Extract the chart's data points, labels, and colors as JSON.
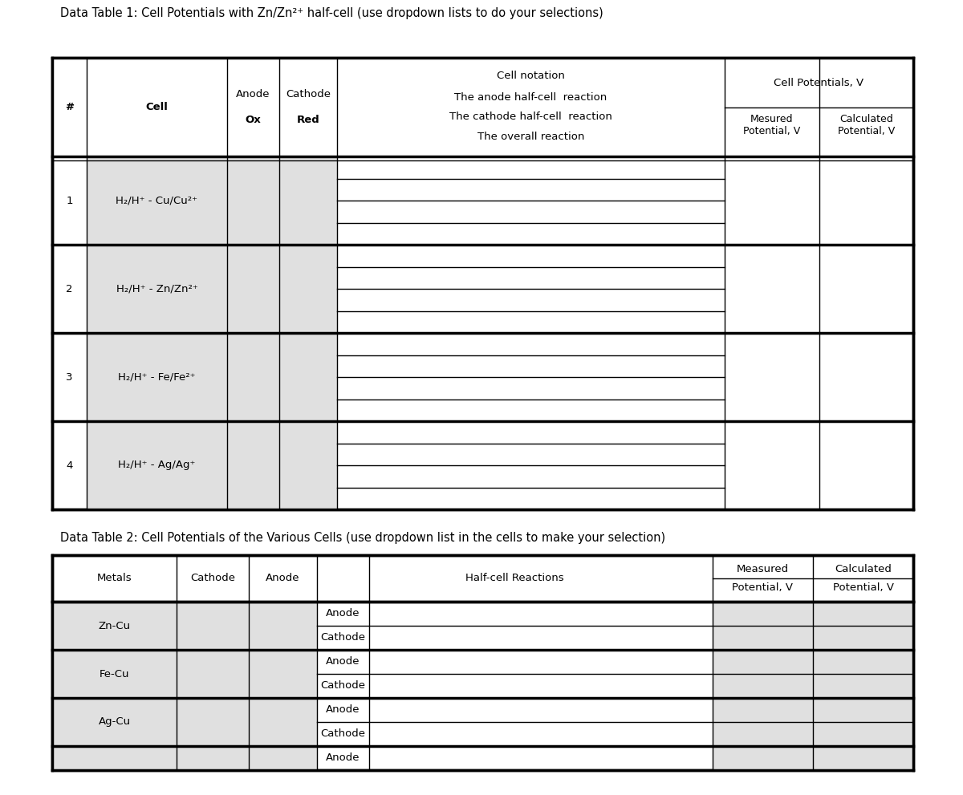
{
  "title1": "Data Table 1: Cell Potentials with Zn/Zn²⁺ half-cell (use dropdown lists to do your selections)",
  "title2": "Data Table 2: Cell Potentials of the Various Cells (use dropdown list in the cells to make your selection)",
  "t1_rows": [
    {
      "num": "1",
      "cell": "H₂/H⁺ - Cu/Cu²⁺"
    },
    {
      "num": "2",
      "cell": "H₂/H⁺ - Zn/Zn²⁺"
    },
    {
      "num": "3",
      "cell": "H₂/H⁺ - Fe/Fe²⁺"
    },
    {
      "num": "4",
      "cell": "H₂/H⁺ - Ag/Ag⁺"
    }
  ],
  "t2_rows": [
    {
      "metals": "Zn-Cu",
      "sub": [
        "Anode",
        "Cathode"
      ]
    },
    {
      "metals": "Fe-Cu",
      "sub": [
        "Anode",
        "Cathode"
      ]
    },
    {
      "metals": "Ag-Cu",
      "sub": [
        "Anode",
        "Cathode"
      ]
    },
    {
      "metals": "",
      "sub": [
        "Anode"
      ]
    }
  ],
  "bg_color": "#ffffff",
  "cell_shade": "#e0e0e0",
  "border_color": "#000000",
  "font_size": 9.5,
  "title_font_size": 10.5,
  "thick_lw": 2.5,
  "thin_lw": 1.0
}
